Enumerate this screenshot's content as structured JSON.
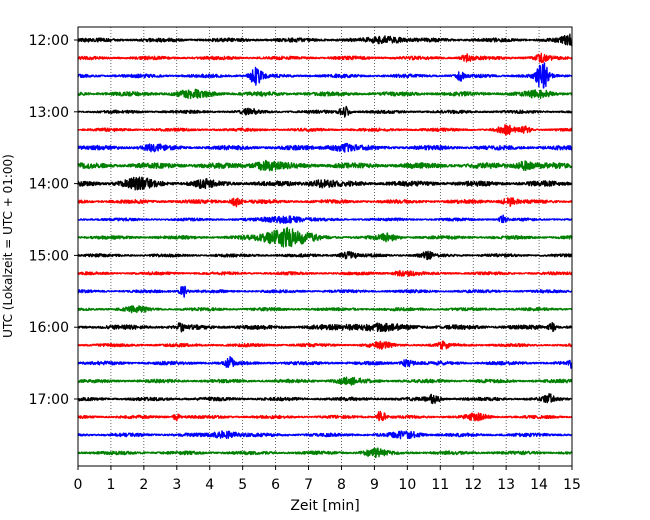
{
  "chart_data": {
    "type": "line",
    "title": "",
    "xlabel": "Zeit  [min]",
    "ylabel": "UTC (Lokalzeit = UTC + 01:00)",
    "xlim": [
      0,
      15
    ],
    "x_ticks": [
      0,
      1,
      2,
      3,
      4,
      5,
      6,
      7,
      8,
      9,
      10,
      11,
      12,
      13,
      14,
      15
    ],
    "x_tick_labels": [
      "0",
      "1",
      "2",
      "3",
      "4",
      "5",
      "6",
      "7",
      "8",
      "9",
      "10",
      "11",
      "12",
      "13",
      "14",
      "15"
    ],
    "y_tick_labels": [
      "12:00",
      "13:00",
      "14:00",
      "15:00",
      "16:00",
      "17:00"
    ],
    "grid": {
      "x": true,
      "style": "dotted",
      "y": false
    },
    "trace_colors": [
      "#000000",
      "#ff0000",
      "#0000ff",
      "#008000"
    ],
    "traces": [
      {
        "start": "11:45",
        "color": "#000000",
        "base_amp": 0.22,
        "events": [
          [
            9.4,
            0.35,
            0.5
          ],
          [
            15,
            0.5,
            0.3
          ]
        ]
      },
      {
        "start": "12:00",
        "color": "#ff0000",
        "base_amp": 0.2,
        "events": [
          [
            11.8,
            0.4,
            0.15
          ],
          [
            14.1,
            0.4,
            0.2
          ]
        ]
      },
      {
        "start": "12:15",
        "color": "#0000ff",
        "base_amp": 0.2,
        "events": [
          [
            5.4,
            0.9,
            0.2
          ],
          [
            11.6,
            0.5,
            0.1
          ],
          [
            14.1,
            1.5,
            0.18
          ]
        ]
      },
      {
        "start": "12:30",
        "color": "#008000",
        "base_amp": 0.25,
        "events": [
          [
            3.5,
            0.3,
            0.5
          ],
          [
            14,
            0.3,
            0.4
          ]
        ]
      },
      {
        "start": "12:45",
        "color": "#000000",
        "base_amp": 0.18,
        "events": [
          [
            8.1,
            0.55,
            0.15
          ],
          [
            5.2,
            0.3,
            0.2
          ]
        ]
      },
      {
        "start": "13:00",
        "color": "#ff0000",
        "base_amp": 0.18,
        "events": [
          [
            13,
            0.4,
            0.25
          ],
          [
            13.6,
            0.3,
            0.15
          ]
        ]
      },
      {
        "start": "13:15",
        "color": "#0000ff",
        "base_amp": 0.25,
        "events": [
          [
            2.3,
            0.3,
            0.3
          ],
          [
            8,
            0.35,
            0.4
          ]
        ]
      },
      {
        "start": "13:30",
        "color": "#008000",
        "base_amp": 0.32,
        "events": [
          [
            5.7,
            0.4,
            0.4
          ],
          [
            13.6,
            0.4,
            0.3
          ]
        ]
      },
      {
        "start": "13:45",
        "color": "#000000",
        "base_amp": 0.3,
        "events": [
          [
            1.8,
            0.45,
            0.5
          ],
          [
            3.8,
            0.3,
            0.3
          ],
          [
            7.4,
            0.3,
            0.4
          ]
        ]
      },
      {
        "start": "14:00",
        "color": "#ff0000",
        "base_amp": 0.22,
        "events": [
          [
            4.8,
            0.5,
            0.15
          ],
          [
            13.1,
            0.45,
            0.2
          ]
        ]
      },
      {
        "start": "14:15",
        "color": "#0000ff",
        "base_amp": 0.16,
        "events": [
          [
            6.3,
            0.35,
            0.6
          ],
          [
            12.9,
            0.4,
            0.1
          ]
        ]
      },
      {
        "start": "14:30",
        "color": "#008000",
        "base_amp": 0.2,
        "events": [
          [
            6.3,
            1.0,
            0.7
          ],
          [
            9.4,
            0.3,
            0.3
          ]
        ]
      },
      {
        "start": "14:45",
        "color": "#000000",
        "base_amp": 0.18,
        "events": [
          [
            8.2,
            0.3,
            0.3
          ],
          [
            10.6,
            0.3,
            0.2
          ]
        ]
      },
      {
        "start": "15:00",
        "color": "#ff0000",
        "base_amp": 0.17,
        "events": [
          [
            9.9,
            0.3,
            0.3
          ]
        ]
      },
      {
        "start": "15:15",
        "color": "#0000ff",
        "base_amp": 0.17,
        "events": [
          [
            3.2,
            0.6,
            0.12
          ]
        ]
      },
      {
        "start": "15:30",
        "color": "#008000",
        "base_amp": 0.18,
        "events": [
          [
            1.8,
            0.3,
            0.3
          ]
        ]
      },
      {
        "start": "15:45",
        "color": "#000000",
        "base_amp": 0.25,
        "events": [
          [
            3.1,
            0.4,
            0.1
          ],
          [
            8.9,
            0.3,
            1.0
          ],
          [
            14.4,
            0.5,
            0.1
          ]
        ]
      },
      {
        "start": "16:00",
        "color": "#ff0000",
        "base_amp": 0.18,
        "events": [
          [
            9.2,
            0.3,
            0.3
          ],
          [
            11.1,
            0.3,
            0.2
          ]
        ]
      },
      {
        "start": "16:15",
        "color": "#0000ff",
        "base_amp": 0.2,
        "events": [
          [
            4.6,
            0.55,
            0.12
          ],
          [
            10,
            0.35,
            0.2
          ],
          [
            15,
            0.6,
            0.1
          ]
        ]
      },
      {
        "start": "16:30",
        "color": "#008000",
        "base_amp": 0.2,
        "events": [
          [
            8.2,
            0.3,
            0.4
          ]
        ]
      },
      {
        "start": "16:45",
        "color": "#000000",
        "base_amp": 0.2,
        "events": [
          [
            10.8,
            0.45,
            0.2
          ],
          [
            14.3,
            0.4,
            0.15
          ]
        ]
      },
      {
        "start": "17:00",
        "color": "#ff0000",
        "base_amp": 0.18,
        "events": [
          [
            3.0,
            0.45,
            0.1
          ],
          [
            9.2,
            0.75,
            0.12
          ],
          [
            12.1,
            0.3,
            0.3
          ]
        ]
      },
      {
        "start": "17:15",
        "color": "#0000ff",
        "base_amp": 0.2,
        "events": [
          [
            4.5,
            0.4,
            0.4
          ],
          [
            10,
            0.3,
            0.4
          ]
        ]
      },
      {
        "start": "17:30",
        "color": "#008000",
        "base_amp": 0.2,
        "events": [
          [
            9.0,
            0.4,
            0.3
          ]
        ]
      }
    ]
  }
}
